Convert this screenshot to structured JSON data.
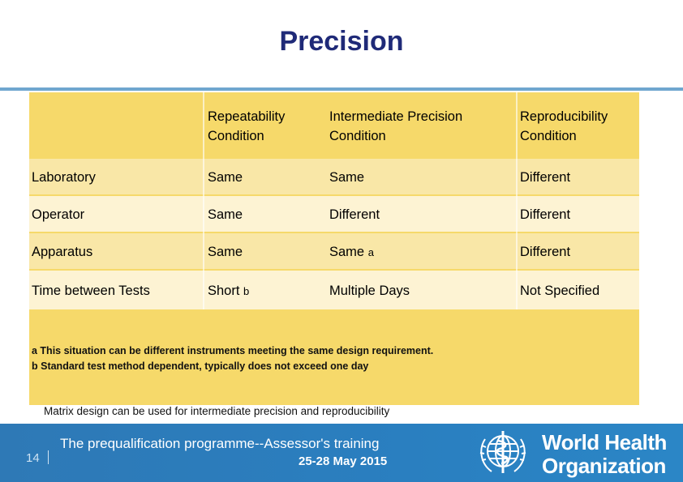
{
  "slide": {
    "title": "Precision",
    "page_number": "14",
    "footer_line1": "The prequalification programme--Assessor's training",
    "footer_line2": "25-28 May 2015",
    "org_name_line1": "World Health",
    "org_name_line2": "Organization"
  },
  "table": {
    "headers": [
      "",
      "Repeatability\nCondition",
      "Intermediate Precision\nCondition",
      "Reproducibility\nCondition"
    ],
    "rows": [
      {
        "label": "Laboratory",
        "c1": "Same",
        "c1_mark": "",
        "c2": "Same",
        "c2_mark": "",
        "c3": "Different"
      },
      {
        "label": "Operator",
        "c1": "Same",
        "c1_mark": "",
        "c2": "Different",
        "c2_mark": "",
        "c3": "Different"
      },
      {
        "label": "Apparatus",
        "c1": "Same",
        "c1_mark": "",
        "c2": "Same",
        "c2_mark": "a",
        "c3": "Different"
      },
      {
        "label": "Time between Tests",
        "c1": "Short",
        "c1_mark": "b",
        "c2": "Multiple Days",
        "c2_mark": "",
        "c3": "Not Specified"
      }
    ],
    "notes": [
      "a  This situation can be different instruments meeting the same design requirement.",
      "b Standard test method dependent, typically does not exceed one day"
    ]
  },
  "matrix_note": "Matrix design can be used for intermediate precision and reproducibility",
  "colors": {
    "title": "#1f2a78",
    "table_fill": "#f6d96a",
    "row_light": "#fdf3d3",
    "footer": "#2a7fc0"
  }
}
